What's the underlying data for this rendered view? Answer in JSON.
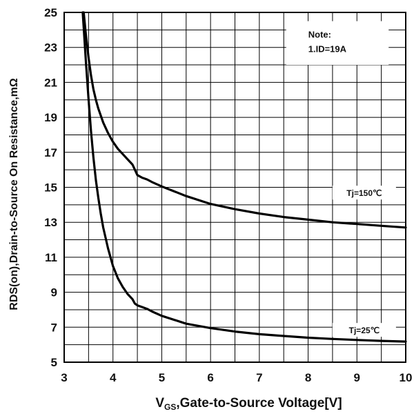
{
  "chart_data": {
    "type": "line",
    "xlabel": {
      "prefix": "V",
      "subscript": "GS",
      "rest": ",Gate-to-Source  Voltage[V]"
    },
    "ylabel": "RDS(on),Drain-to-Source  On Resistance,mΩ",
    "xlim": [
      3,
      10
    ],
    "ylim": [
      5,
      25
    ],
    "x_ticks": [
      3,
      4,
      5,
      6,
      7,
      8,
      9,
      10
    ],
    "y_ticks": [
      5,
      7,
      9,
      11,
      13,
      15,
      17,
      19,
      21,
      23,
      25
    ],
    "x_grid_step": 0.5,
    "y_grid_step": 1,
    "grid": true,
    "legend": "none",
    "annotation": {
      "lines": [
        "Note:",
        "1.ID=19A"
      ],
      "placement": "top-right"
    },
    "series": [
      {
        "name": "Tj=150℃",
        "color": "#000000",
        "x": [
          3.4,
          3.45,
          3.5,
          3.55,
          3.6,
          3.65,
          3.7,
          3.8,
          3.9,
          4.0,
          4.1,
          4.2,
          4.3,
          4.4,
          4.45,
          4.5,
          4.6,
          4.7,
          4.8,
          5.0,
          5.5,
          6.0,
          6.5,
          7.0,
          7.5,
          8.0,
          8.5,
          9.0,
          9.5,
          10.0
        ],
        "y": [
          25.0,
          23.6,
          22.4,
          21.4,
          20.6,
          20.0,
          19.5,
          18.7,
          18.1,
          17.6,
          17.2,
          16.9,
          16.6,
          16.3,
          16.0,
          15.7,
          15.55,
          15.45,
          15.3,
          15.05,
          14.5,
          14.05,
          13.75,
          13.5,
          13.3,
          13.15,
          13.0,
          12.9,
          12.8,
          12.7
        ]
      },
      {
        "name": "Tj=25℃",
        "color": "#000000",
        "x": [
          3.38,
          3.45,
          3.5,
          3.55,
          3.6,
          3.65,
          3.7,
          3.75,
          3.8,
          3.9,
          4.0,
          4.1,
          4.2,
          4.3,
          4.4,
          4.45,
          4.5,
          4.6,
          4.7,
          4.8,
          5.0,
          5.5,
          6.0,
          6.5,
          7.0,
          7.5,
          8.0,
          8.5,
          9.0,
          9.5,
          10.0
        ],
        "y": [
          25.0,
          22.0,
          20.0,
          18.2,
          16.7,
          15.4,
          14.4,
          13.5,
          12.7,
          11.5,
          10.5,
          9.8,
          9.3,
          8.9,
          8.6,
          8.35,
          8.25,
          8.15,
          8.05,
          7.9,
          7.65,
          7.2,
          6.95,
          6.75,
          6.6,
          6.5,
          6.4,
          6.33,
          6.27,
          6.22,
          6.18
        ]
      }
    ],
    "series_labels": [
      {
        "text": "Tj=150℃",
        "x": 9.15,
        "y": 14.5
      },
      {
        "text": "Tj=25℃",
        "x": 9.15,
        "y": 6.65
      }
    ]
  }
}
